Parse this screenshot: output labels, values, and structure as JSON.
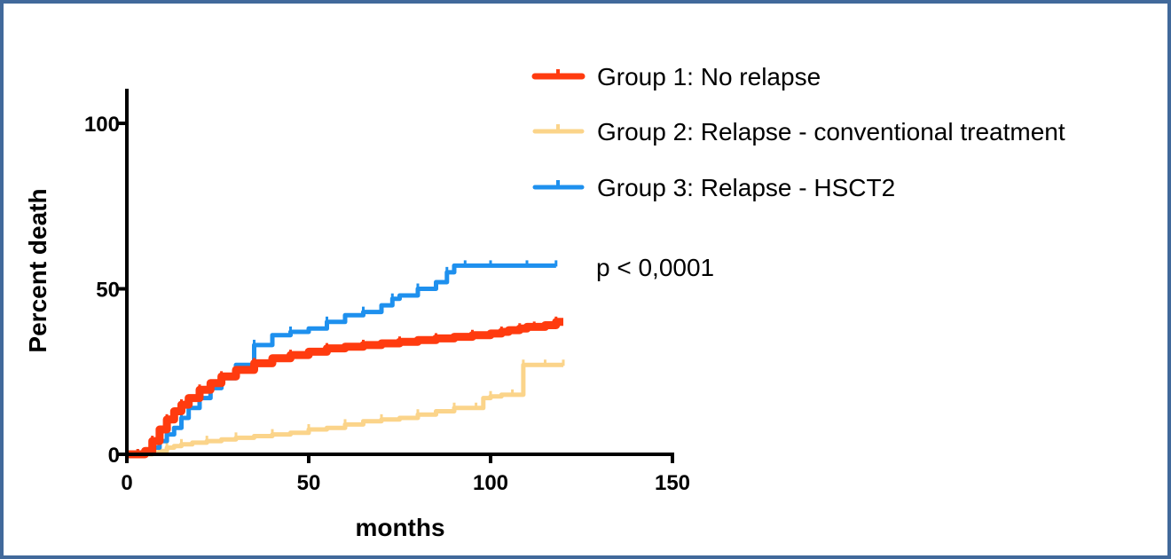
{
  "chart_data": {
    "type": "line",
    "title": "",
    "xlabel": "months",
    "ylabel": "Percent death",
    "xlim": [
      0,
      150
    ],
    "ylim": [
      0,
      110
    ],
    "x_ticks": [
      "0",
      "50",
      "100",
      "150"
    ],
    "y_ticks": [
      "0",
      "50",
      "100"
    ],
    "grid": false,
    "legend_position": "top-right",
    "annotation": "p < 0,0001",
    "series": [
      {
        "name": "Group 1: No relapse",
        "color": "#ff3b0f",
        "x": [
          0,
          3,
          5,
          7,
          9,
          11,
          13,
          15,
          17,
          20,
          23,
          26,
          30,
          35,
          40,
          45,
          50,
          55,
          60,
          65,
          70,
          75,
          80,
          85,
          90,
          95,
          100,
          103,
          105,
          108,
          110,
          112,
          115,
          118,
          120
        ],
        "y": [
          0,
          0,
          1,
          4,
          7.5,
          10.5,
          13,
          15,
          17,
          19.5,
          21.5,
          23.5,
          25.5,
          27.5,
          29,
          30,
          31,
          32,
          32.5,
          33,
          33.5,
          34,
          34.5,
          35,
          35.5,
          36,
          36.5,
          37,
          37.5,
          38,
          38.5,
          38.5,
          39,
          40,
          40
        ]
      },
      {
        "name": "Group 2: Relapse - conventional treatment",
        "color": "#fbd48a",
        "x": [
          0,
          3,
          5,
          7,
          9,
          11,
          13,
          15,
          18,
          22,
          26,
          30,
          35,
          40,
          45,
          50,
          55,
          60,
          65,
          70,
          75,
          80,
          85,
          90,
          93,
          96,
          98,
          100,
          103,
          106,
          108,
          109,
          112,
          115,
          118,
          120
        ],
        "y": [
          0,
          0,
          0,
          0.5,
          1,
          2,
          2.5,
          3,
          3.5,
          4,
          4.5,
          5,
          5.5,
          6,
          6.5,
          7.5,
          8,
          9,
          10,
          10.5,
          11,
          12,
          13,
          14,
          14,
          14,
          17,
          17.5,
          18,
          18,
          18,
          27,
          27,
          27,
          27,
          27
        ]
      },
      {
        "name": "Group 3: Relapse - HSCT2",
        "color": "#1e90ee",
        "x": [
          0,
          3,
          5,
          7,
          9,
          11,
          13,
          15,
          17,
          20,
          23,
          26,
          30,
          35,
          40,
          45,
          50,
          55,
          60,
          65,
          70,
          73,
          75,
          80,
          85,
          88,
          90,
          93,
          95,
          100,
          105,
          110,
          115,
          118
        ],
        "y": [
          0,
          0,
          1,
          2,
          4,
          6,
          8,
          11,
          14,
          17,
          20,
          23,
          27,
          33,
          36,
          37,
          38,
          40,
          42,
          43,
          45,
          47,
          48,
          50,
          52,
          55,
          57,
          57,
          57,
          57,
          57,
          57,
          57,
          57
        ]
      }
    ]
  }
}
